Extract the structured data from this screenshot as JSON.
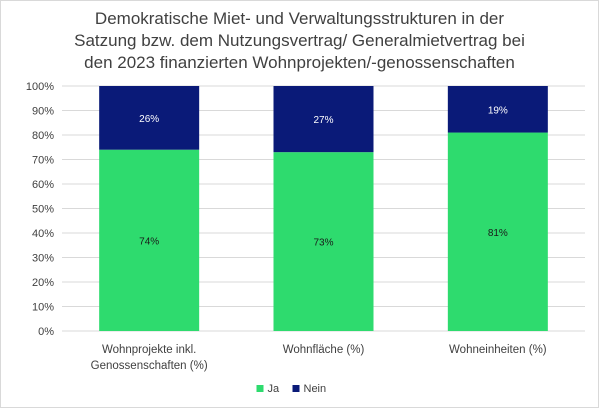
{
  "chart_data": {
    "type": "bar",
    "stacked": true,
    "title_lines": [
      "Demokratische Miet- und Verwaltungsstrukturen in der",
      "Satzung bzw. dem Nutzungsvertrag/ Generalmietvertrag bei",
      "den 2023 finanzierten Wohnprojekten/-genossenschaften"
    ],
    "categories": [
      [
        "Wohnprojekte inkl.",
        "Genossenschaften (%)"
      ],
      [
        "Wohnfläche (%)"
      ],
      [
        "Wohneinheiten (%)"
      ]
    ],
    "series": [
      {
        "name": "Ja",
        "color": "#2edb6e",
        "label_color": "#1a1a1a",
        "values": [
          74,
          73,
          81
        ],
        "labels": [
          "74%",
          "73%",
          "81%"
        ]
      },
      {
        "name": "Nein",
        "color": "#0a1a78",
        "label_color": "#ffffff",
        "values": [
          26,
          27,
          19
        ],
        "labels": [
          "26%",
          "27%",
          "19%"
        ]
      }
    ],
    "ylim": [
      0,
      100
    ],
    "yticks": [
      "0%",
      "10%",
      "20%",
      "30%",
      "40%",
      "50%",
      "60%",
      "70%",
      "80%",
      "90%",
      "100%"
    ],
    "grid": true,
    "legend_position": "bottom"
  }
}
